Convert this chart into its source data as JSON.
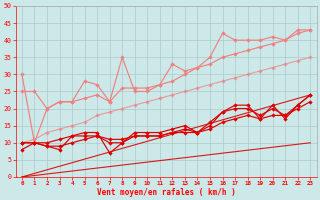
{
  "x": [
    0,
    1,
    2,
    3,
    4,
    5,
    6,
    7,
    8,
    9,
    10,
    11,
    12,
    13,
    14,
    15,
    16,
    17,
    18,
    19,
    20,
    21,
    22,
    23
  ],
  "light1": [
    30,
    10,
    20,
    22,
    22,
    28,
    27,
    22,
    35,
    25,
    25,
    27,
    33,
    31,
    32,
    35,
    42,
    40,
    40,
    40,
    41,
    40,
    43,
    43
  ],
  "light2": [
    25,
    25,
    20,
    22,
    22,
    23,
    24,
    22,
    26,
    26,
    26,
    27,
    28,
    30,
    32,
    33,
    35,
    36,
    37,
    38,
    39,
    40,
    42,
    43
  ],
  "light3_diag": [
    10,
    11,
    13,
    14,
    15,
    16,
    18,
    19,
    20,
    21,
    22,
    23,
    24,
    25,
    26,
    27,
    28,
    29,
    30,
    31,
    32,
    33,
    34,
    35
  ],
  "dark1": [
    8,
    10,
    10,
    11,
    12,
    13,
    13,
    7,
    10,
    13,
    13,
    13,
    14,
    15,
    13,
    16,
    19,
    21,
    21,
    17,
    21,
    17,
    21,
    24
  ],
  "dark2": [
    10,
    10,
    9,
    8,
    12,
    12,
    12,
    10,
    10,
    12,
    12,
    12,
    13,
    14,
    13,
    15,
    19,
    20,
    20,
    18,
    20,
    18,
    21,
    24
  ],
  "dark3": [
    10,
    10,
    9,
    9,
    10,
    11,
    12,
    11,
    11,
    12,
    12,
    12,
    13,
    13,
    13,
    14,
    16,
    17,
    18,
    17,
    18,
    18,
    20,
    22
  ],
  "dark_lin1": [
    0,
    1.04,
    2.09,
    3.13,
    4.17,
    5.22,
    6.26,
    7.3,
    8.35,
    9.39,
    10.43,
    11.48,
    12.52,
    13.57,
    14.61,
    15.65,
    16.7,
    17.74,
    18.78,
    19.83,
    20.87,
    21.91,
    22.96,
    24.0
  ],
  "dark_lin2": [
    0,
    0.43,
    0.87,
    1.3,
    1.74,
    2.17,
    2.61,
    3.04,
    3.48,
    3.91,
    4.35,
    4.78,
    5.22,
    5.65,
    6.09,
    6.52,
    6.96,
    7.39,
    7.83,
    8.26,
    8.7,
    9.13,
    9.57,
    10.0
  ],
  "wind_arrows": [
    -2,
    -2,
    -2,
    -2,
    -2,
    -2,
    -2,
    -2,
    -2,
    -2,
    -2,
    -2,
    -2,
    -2,
    -2,
    -2,
    -2,
    -2,
    -2,
    -2,
    -2,
    -2,
    -2,
    -2
  ],
  "ylim": [
    0,
    50
  ],
  "xlim": [
    -0.5,
    23.5
  ],
  "yticks": [
    0,
    5,
    10,
    15,
    20,
    25,
    30,
    35,
    40,
    45,
    50
  ],
  "xticks": [
    0,
    1,
    2,
    3,
    4,
    5,
    6,
    7,
    8,
    9,
    10,
    11,
    12,
    13,
    14,
    15,
    16,
    17,
    18,
    19,
    20,
    21,
    22,
    23
  ],
  "xlabel": "Vent moyen/en rafales ( km/h )",
  "bg_color": "#cce8e8",
  "grid_color": "#aacccc",
  "light_color": "#f08080",
  "dark_color": "#dd0000",
  "arrow_color": "#cc0000"
}
